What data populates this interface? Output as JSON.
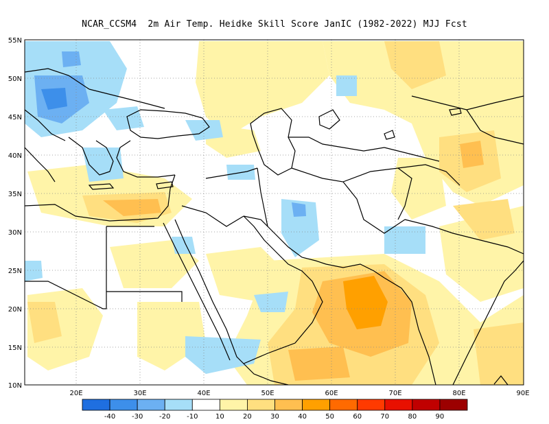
{
  "title": "NCAR_CCSM4  2m Air Temp. Heidke Skill Score JanIC (1982-2022) MJJ Fcst",
  "lat_labels": [
    "55N",
    "50N",
    "45N",
    "40N",
    "35N",
    "30N",
    "25N",
    "20N",
    "15N",
    "10N"
  ],
  "lon_labels": [
    "20E",
    "30E",
    "40E",
    "50E",
    "60E",
    "70E",
    "80E",
    "90E"
  ],
  "colorbar": {
    "labels": [
      "-40",
      "-30",
      "-20",
      "-10",
      "10",
      "20",
      "30",
      "40",
      "50",
      "60",
      "70",
      "80",
      "90"
    ],
    "colors": [
      "#1f6fe0",
      "#3d8fea",
      "#6cb0f2",
      "#a6def8",
      "#ffffff",
      "#fff4a8",
      "#ffdf80",
      "#ffbf50",
      "#ffa000",
      "#ff6a00",
      "#ff3a00",
      "#e81000",
      "#c00000",
      "#9c0000"
    ]
  },
  "map": {
    "region": "Middle East / Eastern Mediterranean / South Asia",
    "lat_range": [
      10,
      55
    ],
    "lon_range": [
      12,
      90
    ],
    "grid": "dotted",
    "features": [
      {
        "name": "arabian-sea-warm-anomaly",
        "level": "40-50"
      },
      {
        "name": "central-asia-warm-anomaly",
        "level": "20-30"
      },
      {
        "name": "eastern-europe-cool-anomaly",
        "level": "-30 to -20"
      },
      {
        "name": "iran-cool-anomaly",
        "level": "-10 to -20"
      }
    ]
  }
}
